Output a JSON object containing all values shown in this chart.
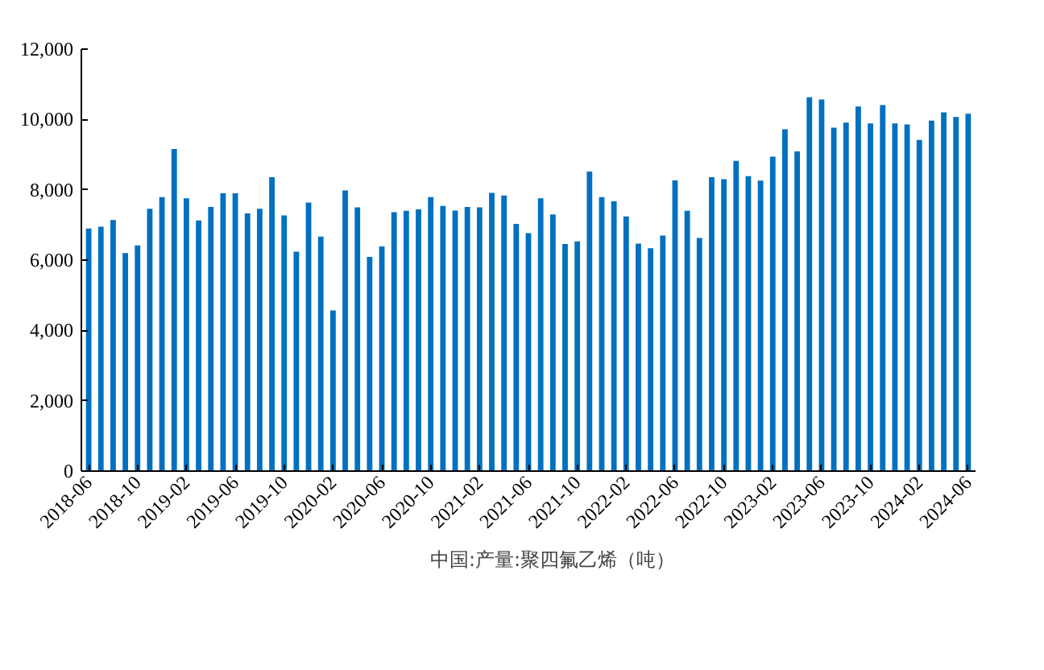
{
  "chart_data": {
    "type": "bar",
    "categories": [
      "2018-06",
      null,
      null,
      null,
      "2018-10",
      null,
      null,
      null,
      "2019-02",
      null,
      null,
      null,
      "2019-06",
      null,
      null,
      null,
      "2019-10",
      null,
      null,
      null,
      "2020-02",
      null,
      null,
      null,
      "2020-06",
      null,
      null,
      null,
      "2020-10",
      null,
      null,
      null,
      "2021-02",
      null,
      null,
      null,
      "2021-06",
      null,
      null,
      null,
      "2021-10",
      null,
      null,
      null,
      "2022-02",
      null,
      null,
      null,
      "2022-06",
      null,
      null,
      null,
      "2022-10",
      null,
      null,
      null,
      "2023-02",
      null,
      null,
      null,
      "2023-06",
      null,
      null,
      null,
      "2023-10",
      null,
      null,
      null,
      "2024-02",
      null,
      null,
      null,
      "2024-06"
    ],
    "series": [
      {
        "name": "中国:产量:聚四氟乙烯（吨）",
        "color": "#0070c0",
        "values": [
          6900,
          6950,
          7140,
          6200,
          6420,
          7460,
          7790,
          9160,
          7760,
          7130,
          7510,
          7900,
          7900,
          7330,
          7460,
          8360,
          7270,
          6240,
          7640,
          6670,
          4570,
          7980,
          7500,
          6090,
          6390,
          7360,
          7400,
          7440,
          7790,
          7540,
          7410,
          7510,
          7500,
          7910,
          7840,
          7030,
          6770,
          7760,
          7300,
          6460,
          6530,
          8520,
          7790,
          7670,
          7240,
          6470,
          6340,
          6700,
          8270,
          7400,
          6630,
          8360,
          8300,
          8820,
          8390,
          8260,
          8940,
          9720,
          9090,
          10630,
          10570,
          9770,
          9910,
          10370,
          9890,
          10410,
          9890,
          9860,
          9420,
          9970,
          10200,
          10070,
          10160
        ]
      }
    ],
    "ylim": [
      0,
      12000
    ],
    "yticks": [
      0,
      {
        "value": 2000,
        "label": "2,000"
      },
      {
        "value": 4000,
        "label": "4,000"
      },
      {
        "value": 6000,
        "label": "6,000"
      },
      {
        "value": 8000,
        "label": "8,000"
      },
      {
        "value": 10000,
        "label": "10,000"
      },
      {
        "value": 12000,
        "label": "12,000"
      }
    ],
    "grid": false,
    "legend": "bottom"
  }
}
